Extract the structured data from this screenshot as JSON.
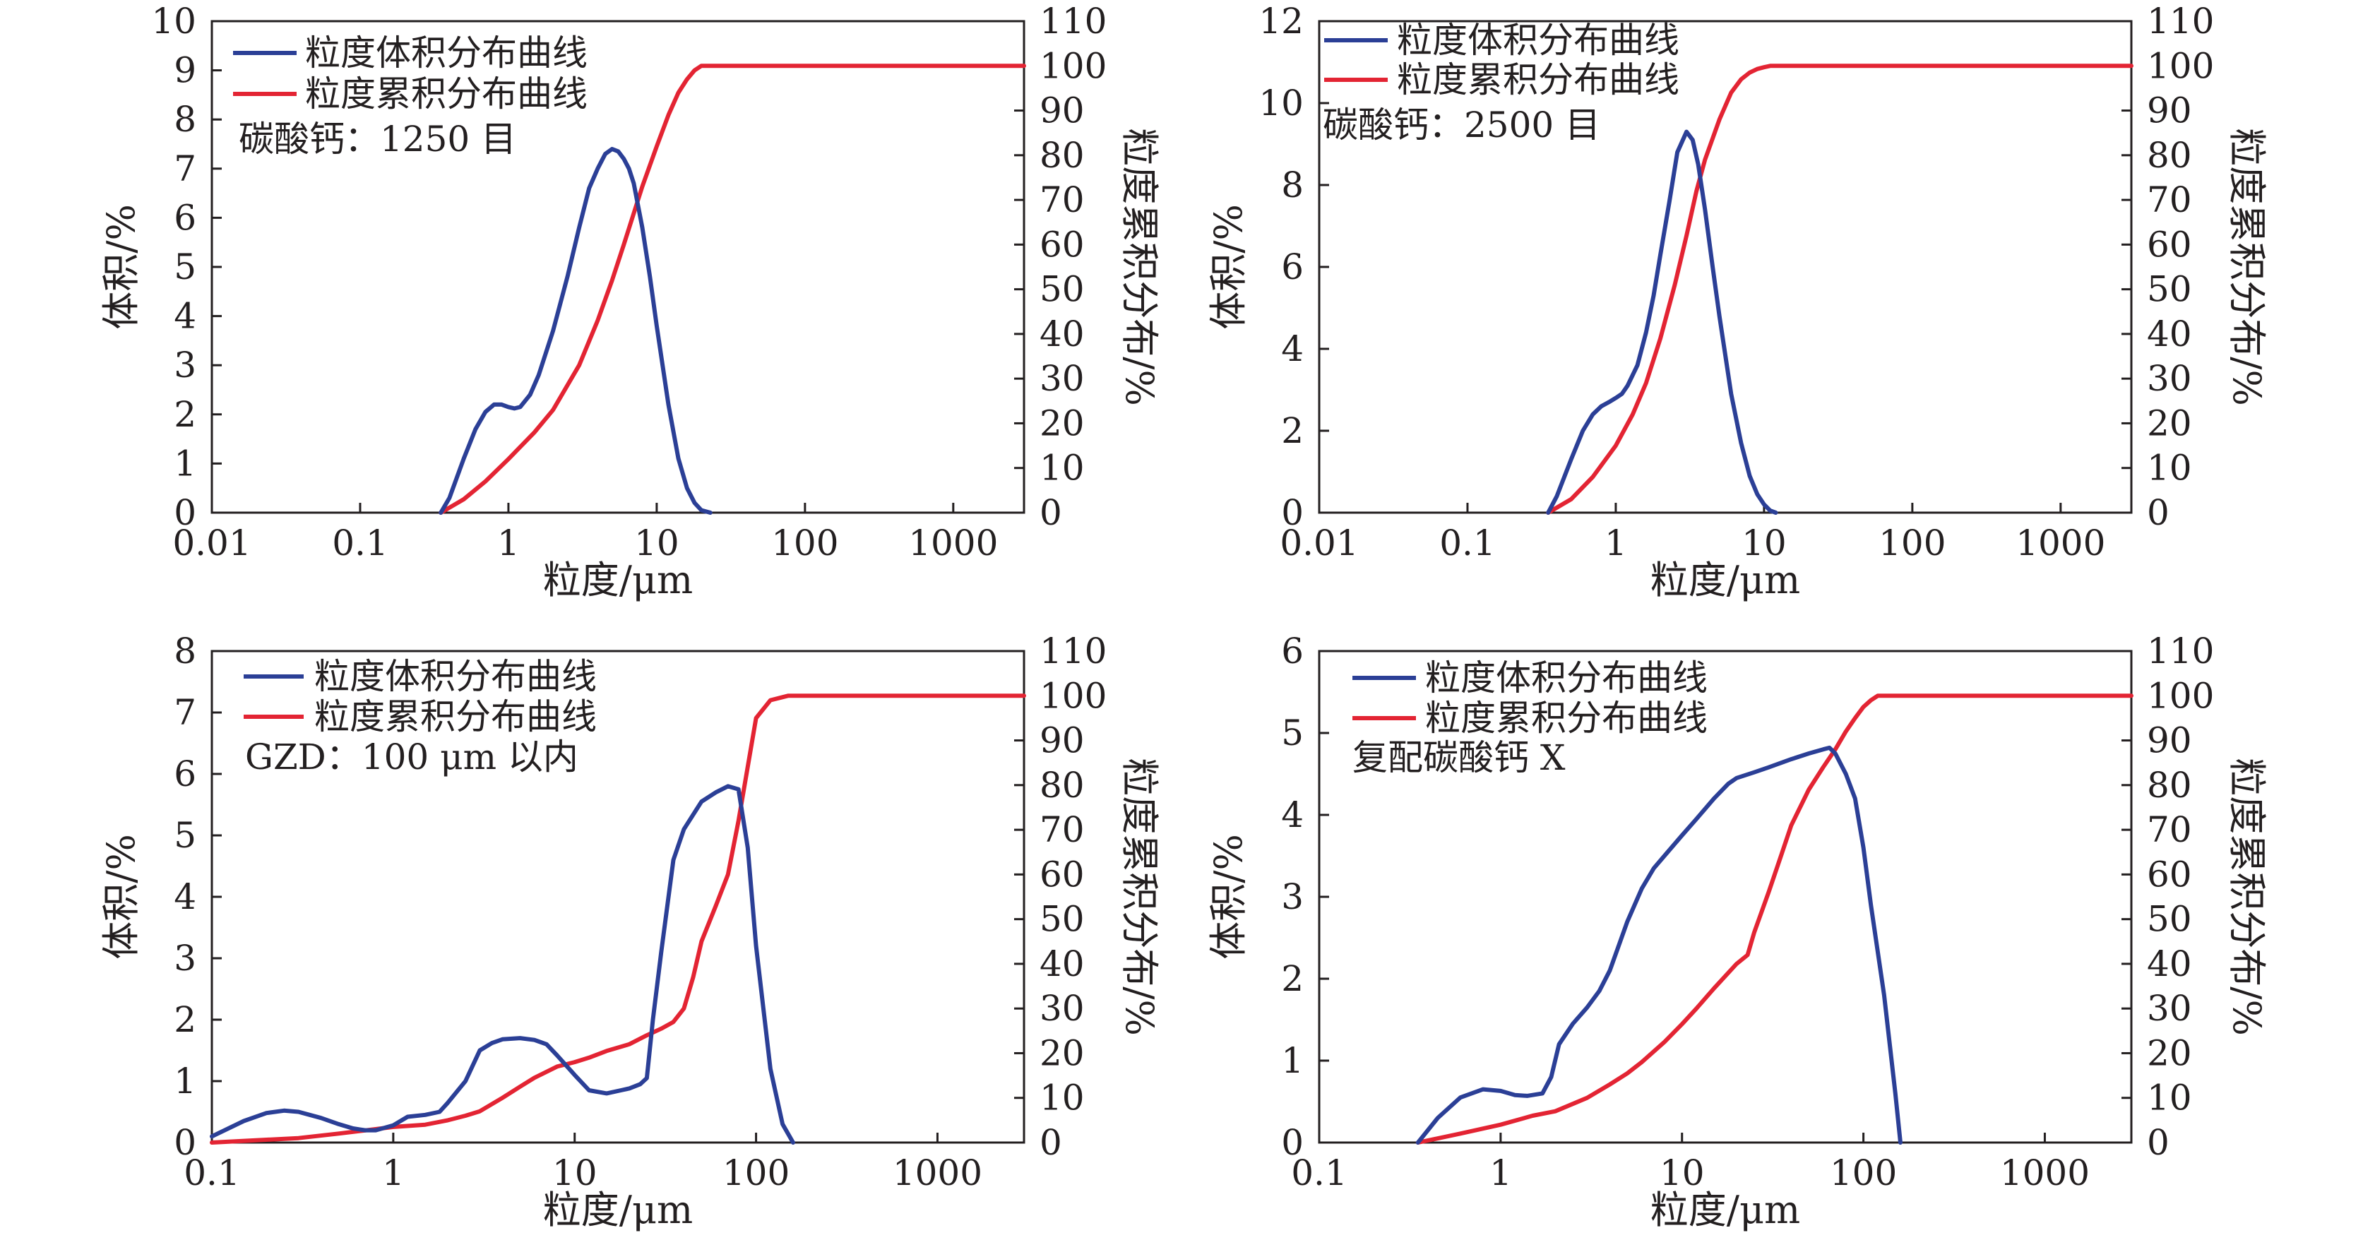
{
  "colors": {
    "volume": "#2b3f96",
    "cumulative": "#e32433",
    "axis": "#231f20"
  },
  "chart_data": [
    {
      "type": "line",
      "x_scale": "log",
      "xlim": [
        0.01,
        3000
      ],
      "x_ticks": [
        "0.01",
        "0.1",
        "1",
        "10",
        "100",
        "1000"
      ],
      "x_tick_values": [
        0.01,
        0.1,
        1,
        10,
        100,
        1000
      ],
      "ylim": [
        0,
        10
      ],
      "y_ticks": [
        "0",
        "1",
        "2",
        "3",
        "4",
        "5",
        "6",
        "7",
        "8",
        "9",
        "10"
      ],
      "y2lim": [
        0,
        110
      ],
      "y2_ticks": [
        "0",
        "10",
        "20",
        "30",
        "40",
        "50",
        "60",
        "70",
        "80",
        "90",
        "100",
        "110"
      ],
      "xlabel": "粒度/μm",
      "ylabel": "体积/%",
      "y2label": "粒度累积分布/%",
      "legend_position": "top-left",
      "note": "碳酸钙：1250 目",
      "series": [
        {
          "name": "粒度体积分布曲线",
          "axis": "left",
          "x": [
            0.35,
            0.4,
            0.5,
            0.6,
            0.7,
            0.8,
            0.9,
            1.0,
            1.1,
            1.2,
            1.4,
            1.6,
            2.0,
            2.5,
            3.0,
            3.5,
            4.0,
            4.5,
            5.0,
            5.5,
            6.0,
            6.5,
            7.0,
            8.0,
            9.0,
            10,
            12,
            14,
            16,
            18,
            20,
            23
          ],
          "values": [
            0,
            0.3,
            1.1,
            1.7,
            2.05,
            2.2,
            2.2,
            2.15,
            2.12,
            2.15,
            2.4,
            2.8,
            3.7,
            4.8,
            5.8,
            6.6,
            7.0,
            7.3,
            7.4,
            7.35,
            7.2,
            7.0,
            6.7,
            5.8,
            4.8,
            3.8,
            2.2,
            1.1,
            0.5,
            0.2,
            0.05,
            0
          ],
          "color": "#2b3f96"
        },
        {
          "name": "粒度累积分布曲线",
          "axis": "right",
          "x": [
            0.35,
            0.5,
            0.7,
            1.0,
            1.5,
            2.0,
            3.0,
            4.0,
            5.0,
            6.0,
            7.0,
            8.0,
            10,
            12,
            14,
            16,
            18,
            20,
            30,
            100,
            1000,
            3000
          ],
          "values": [
            0,
            3,
            7,
            12,
            18,
            23,
            33,
            43,
            52,
            60,
            67,
            73,
            82,
            89,
            94,
            97,
            99,
            100,
            100,
            100,
            100,
            100
          ],
          "color": "#e32433"
        }
      ]
    },
    {
      "type": "line",
      "x_scale": "log",
      "xlim": [
        0.01,
        3000
      ],
      "x_ticks": [
        "0.01",
        "0.1",
        "1",
        "10",
        "100",
        "1000"
      ],
      "x_tick_values": [
        0.01,
        0.1,
        1,
        10,
        100,
        1000
      ],
      "ylim": [
        0,
        12
      ],
      "y_ticks": [
        "0",
        "2",
        "4",
        "6",
        "8",
        "10",
        "12"
      ],
      "y2lim": [
        0,
        110
      ],
      "y2_ticks": [
        "0",
        "10",
        "20",
        "30",
        "40",
        "50",
        "60",
        "70",
        "80",
        "90",
        "100",
        "110"
      ],
      "xlabel": "粒度/μm",
      "ylabel": "体积/%",
      "y2label": "粒度累积分布/%",
      "legend_position": "top-left",
      "note": "碳酸钙：2500 目",
      "series": [
        {
          "name": "粒度体积分布曲线",
          "axis": "left",
          "x": [
            0.35,
            0.4,
            0.5,
            0.6,
            0.7,
            0.8,
            0.9,
            1.0,
            1.1,
            1.2,
            1.4,
            1.6,
            1.8,
            2.0,
            2.3,
            2.6,
            3.0,
            3.3,
            3.6,
            4.0,
            4.5,
            5.0,
            6.0,
            7.0,
            8.0,
            9.0,
            10,
            11,
            12
          ],
          "values": [
            0,
            0.4,
            1.3,
            2.0,
            2.4,
            2.6,
            2.7,
            2.8,
            2.9,
            3.1,
            3.6,
            4.4,
            5.3,
            6.3,
            7.6,
            8.8,
            9.3,
            9.1,
            8.5,
            7.4,
            6.0,
            4.8,
            2.9,
            1.7,
            0.9,
            0.45,
            0.2,
            0.05,
            0
          ],
          "color": "#2b3f96"
        },
        {
          "name": "粒度累积分布曲线",
          "axis": "right",
          "x": [
            0.35,
            0.5,
            0.7,
            1.0,
            1.3,
            1.6,
            2.0,
            2.5,
            3.0,
            3.5,
            4.0,
            5.0,
            6.0,
            7.0,
            8.0,
            9.0,
            10,
            11,
            12,
            15,
            100,
            1000,
            3000
          ],
          "values": [
            0,
            3,
            8,
            15,
            22,
            29,
            39,
            51,
            62,
            72,
            79,
            88,
            94,
            97,
            98.5,
            99.3,
            99.7,
            100,
            100,
            100,
            100,
            100,
            100
          ],
          "color": "#e32433"
        }
      ]
    },
    {
      "type": "line",
      "x_scale": "log",
      "xlim": [
        0.1,
        3000
      ],
      "x_ticks": [
        "0.1",
        "1",
        "10",
        "100",
        "1000"
      ],
      "x_tick_values": [
        0.1,
        1,
        10,
        100,
        1000
      ],
      "ylim": [
        0,
        8
      ],
      "y_ticks": [
        "0",
        "1",
        "2",
        "3",
        "4",
        "5",
        "6",
        "7",
        "8"
      ],
      "y2lim": [
        0,
        110
      ],
      "y2_ticks": [
        "0",
        "10",
        "20",
        "30",
        "40",
        "50",
        "60",
        "70",
        "80",
        "90",
        "100",
        "110"
      ],
      "xlabel": "粒度/μm",
      "ylabel": "体积/%",
      "y2label": "粒度累积分布/%",
      "legend_position": "top-left",
      "note": "GZD：100 μm 以内",
      "series": [
        {
          "name": "粒度体积分布曲线",
          "axis": "left",
          "x": [
            0.1,
            0.15,
            0.2,
            0.25,
            0.3,
            0.4,
            0.5,
            0.6,
            0.7,
            0.8,
            1.0,
            1.2,
            1.5,
            1.8,
            2.0,
            2.5,
            3.0,
            3.5,
            4.0,
            5.0,
            6.0,
            7.0,
            8.0,
            10,
            12,
            15,
            18,
            20,
            23,
            25,
            27,
            30,
            35,
            40,
            50,
            60,
            70,
            80,
            90,
            100,
            120,
            140,
            160
          ],
          "values": [
            0.1,
            0.35,
            0.48,
            0.52,
            0.5,
            0.4,
            0.3,
            0.23,
            0.2,
            0.2,
            0.28,
            0.42,
            0.45,
            0.5,
            0.65,
            1.0,
            1.5,
            1.62,
            1.68,
            1.7,
            1.67,
            1.6,
            1.42,
            1.1,
            0.85,
            0.8,
            0.85,
            0.88,
            0.95,
            1.05,
            2.0,
            3.1,
            4.6,
            5.1,
            5.55,
            5.7,
            5.8,
            5.75,
            4.8,
            3.2,
            1.2,
            0.3,
            0
          ],
          "color": "#2b3f96"
        },
        {
          "name": "粒度累积分布曲线",
          "axis": "right",
          "x": [
            0.1,
            0.3,
            0.5,
            0.8,
            1.0,
            1.5,
            2.0,
            2.5,
            3.0,
            4.0,
            5.0,
            6.0,
            8.0,
            10,
            12,
            15,
            20,
            25,
            30,
            35,
            40,
            45,
            50,
            60,
            70,
            80,
            100,
            120,
            150,
            200,
            1000,
            3000
          ],
          "values": [
            0,
            1,
            2,
            3,
            3.5,
            4,
            5,
            6,
            7,
            10,
            12.5,
            14.5,
            17,
            18,
            19,
            20.5,
            22,
            24,
            25.5,
            27,
            30,
            37,
            45,
            53,
            60,
            72,
            95,
            99,
            100,
            100,
            100,
            100
          ],
          "color": "#e32433"
        }
      ]
    },
    {
      "type": "line",
      "x_scale": "log",
      "xlim": [
        0.1,
        3000
      ],
      "x_ticks": [
        "0.1",
        "1",
        "10",
        "100",
        "1000"
      ],
      "x_tick_values": [
        0.1,
        1,
        10,
        100,
        1000
      ],
      "ylim": [
        0,
        6
      ],
      "y_ticks": [
        "0",
        "1",
        "2",
        "3",
        "4",
        "5",
        "6"
      ],
      "y2lim": [
        0,
        110
      ],
      "y2_ticks": [
        "0",
        "10",
        "20",
        "30",
        "40",
        "50",
        "60",
        "70",
        "80",
        "90",
        "100",
        "110"
      ],
      "xlabel": "粒度/μm",
      "ylabel": "体积/%",
      "y2label": "粒度累积分布/%",
      "legend_position": "top-left",
      "note": "复配碳酸钙 X",
      "series": [
        {
          "name": "粒度体积分布曲线",
          "axis": "left",
          "x": [
            0.35,
            0.45,
            0.6,
            0.8,
            1.0,
            1.2,
            1.4,
            1.7,
            1.9,
            2.1,
            2.5,
            3.0,
            3.5,
            4.0,
            5.0,
            6.0,
            7.0,
            8.0,
            10,
            12,
            15,
            18,
            20,
            25,
            30,
            40,
            50,
            60,
            65,
            70,
            80,
            90,
            100,
            110,
            130,
            150,
            160
          ],
          "values": [
            0,
            0.3,
            0.55,
            0.65,
            0.63,
            0.58,
            0.57,
            0.6,
            0.8,
            1.2,
            1.45,
            1.65,
            1.85,
            2.1,
            2.7,
            3.1,
            3.35,
            3.5,
            3.75,
            3.95,
            4.2,
            4.38,
            4.45,
            4.52,
            4.58,
            4.68,
            4.75,
            4.8,
            4.82,
            4.75,
            4.5,
            4.2,
            3.6,
            2.9,
            1.8,
            0.6,
            0
          ],
          "color": "#2b3f96"
        },
        {
          "name": "粒度累积分布曲线",
          "axis": "right",
          "x": [
            0.35,
            0.6,
            1.0,
            1.5,
            2.0,
            3.0,
            4.0,
            5.0,
            6.0,
            8.0,
            10,
            12,
            15,
            20,
            23,
            25,
            30,
            35,
            40,
            50,
            60,
            70,
            80,
            90,
            100,
            110,
            120,
            150,
            1000,
            3000
          ],
          "values": [
            0,
            2,
            4,
            6,
            7,
            10,
            13,
            15.5,
            18,
            22.5,
            26.5,
            30,
            34.5,
            40,
            42,
            47,
            56,
            64,
            71,
            79,
            84,
            88,
            92,
            95,
            97.5,
            99,
            100,
            100,
            100,
            100
          ],
          "color": "#e32433"
        }
      ]
    }
  ]
}
